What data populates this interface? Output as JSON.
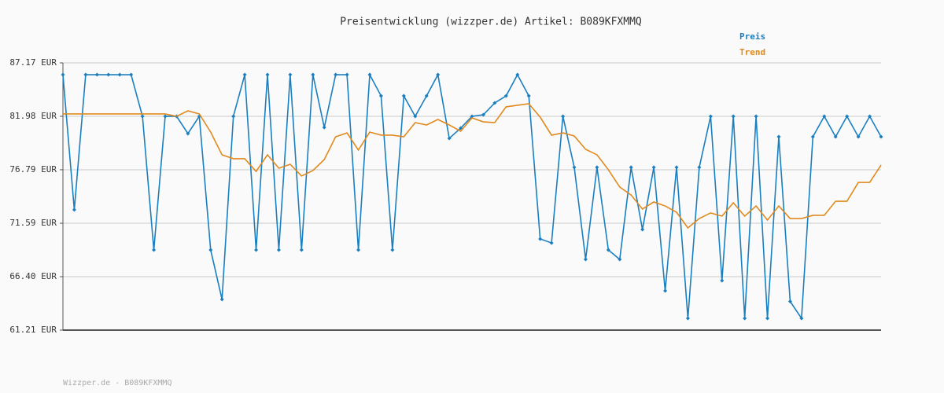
{
  "chart_data": {
    "type": "line",
    "title": "Preisentwicklung (wizzper.de) Artikel: B089KFXMMQ",
    "footer": "Wizzper.de - B089KFXMMQ",
    "ylim": [
      61.21,
      87.17
    ],
    "yticks": [
      {
        "value": 61.21,
        "label": "61.21 EUR"
      },
      {
        "value": 66.4,
        "label": "66.40 EUR"
      },
      {
        "value": 71.59,
        "label": "71.59 EUR"
      },
      {
        "value": 76.79,
        "label": "76.79 EUR"
      },
      {
        "value": 81.98,
        "label": "81.98 EUR"
      },
      {
        "value": 87.17,
        "label": "87.17 EUR"
      }
    ],
    "grid": true,
    "series": [
      {
        "name": "Preis",
        "color": "#1a7fc0",
        "markers": true,
        "values": [
          86.02,
          72.9,
          86.02,
          86.02,
          86.02,
          86.02,
          86.02,
          81.98,
          69.0,
          81.98,
          81.98,
          80.3,
          81.98,
          69.0,
          64.2,
          81.98,
          86.02,
          69.0,
          86.02,
          69.0,
          86.02,
          69.0,
          86.02,
          80.9,
          86.02,
          86.02,
          69.0,
          86.02,
          83.96,
          69.0,
          83.96,
          81.98,
          83.96,
          86.02,
          79.84,
          80.83,
          81.98,
          82.13,
          83.28,
          83.96,
          86.02,
          83.96,
          70.07,
          69.68,
          81.98,
          77.02,
          68.08,
          77.02,
          69.0,
          68.08,
          77.02,
          70.98,
          77.02,
          65.03,
          77.02,
          62.36,
          77.02,
          81.98,
          66.02,
          81.98,
          62.36,
          81.98,
          62.36,
          79.99,
          64.0,
          62.36,
          79.99,
          81.98,
          79.99,
          81.98,
          79.99,
          81.98,
          79.99
        ]
      },
      {
        "name": "Trend",
        "color": "#e08a1e",
        "markers": false,
        "values": [
          82.21,
          82.21,
          82.21,
          82.21,
          82.21,
          82.21,
          82.21,
          82.21,
          82.21,
          82.21,
          81.98,
          82.51,
          82.21,
          80.45,
          78.24,
          77.86,
          77.86,
          76.63,
          78.24,
          76.94,
          77.32,
          76.18,
          76.71,
          77.78,
          79.99,
          80.37,
          78.7,
          80.45,
          80.15,
          80.15,
          79.99,
          81.37,
          81.14,
          81.67,
          81.14,
          80.53,
          81.83,
          81.44,
          81.37,
          82.9,
          83.05,
          83.2,
          81.9,
          80.15,
          80.37,
          80.07,
          78.77,
          78.24,
          76.79,
          75.11,
          74.34,
          72.97,
          73.66,
          73.27,
          72.66,
          71.14,
          72.05,
          72.59,
          72.28,
          73.58,
          72.28,
          73.27,
          71.9,
          73.27,
          72.05,
          72.05,
          72.36,
          72.36,
          73.73,
          73.73,
          75.56,
          75.56,
          77.24
        ]
      }
    ]
  }
}
